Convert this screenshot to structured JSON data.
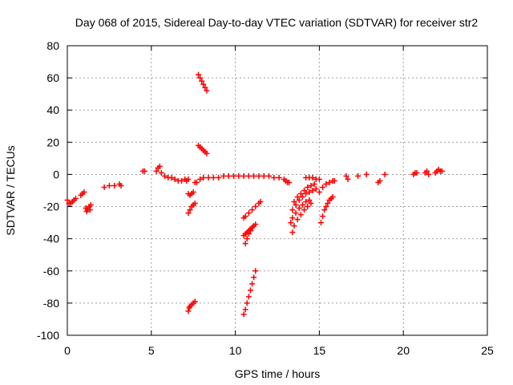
{
  "chart_data": {
    "type": "scatter",
    "title": "Day 068 of 2015, Sidereal Day-to-day VTEC variation (SDTVAR) for receiver str2",
    "xlabel": "GPS time / hours",
    "ylabel": "SDTVAR / TECUs",
    "xlim": [
      0,
      25
    ],
    "ylim": [
      -100,
      80
    ],
    "xticks": [
      "0",
      "5",
      "10",
      "15",
      "20",
      "25"
    ],
    "yticks": [
      "-100",
      "-80",
      "-60",
      "-40",
      "-20",
      "0",
      "20",
      "40",
      "60",
      "80"
    ],
    "xtick_values": [
      0,
      5,
      10,
      15,
      20,
      25
    ],
    "ytick_values": [
      -100,
      -80,
      -60,
      -40,
      -20,
      0,
      20,
      40,
      60,
      80
    ],
    "grid": true,
    "marker": "+",
    "color": "#ff0000",
    "series": [
      {
        "points": [
          [
            0.0,
            -16
          ],
          [
            0.1,
            -18
          ],
          [
            0.2,
            -18
          ],
          [
            0.3,
            -17
          ],
          [
            0.4,
            -16
          ],
          [
            0.5,
            -15
          ],
          [
            0.8,
            -13
          ],
          [
            0.9,
            -12
          ],
          [
            1.0,
            -11
          ],
          [
            1.1,
            -21
          ],
          [
            1.15,
            -23
          ],
          [
            1.2,
            -22
          ],
          [
            1.3,
            -20
          ],
          [
            1.35,
            -22
          ],
          [
            1.4,
            -19
          ],
          [
            2.2,
            -8
          ],
          [
            2.5,
            -7
          ],
          [
            2.8,
            -7
          ],
          [
            3.1,
            -6
          ],
          [
            3.2,
            -7
          ],
          [
            4.5,
            2
          ],
          [
            4.6,
            2
          ],
          [
            5.3,
            2
          ],
          [
            5.4,
            4
          ],
          [
            5.5,
            5
          ],
          [
            5.6,
            1
          ],
          [
            5.8,
            -1
          ],
          [
            6.0,
            -2
          ],
          [
            6.2,
            -2
          ],
          [
            6.4,
            -3
          ],
          [
            6.6,
            -4
          ],
          [
            6.8,
            -4
          ],
          [
            7.0,
            -3
          ],
          [
            7.1,
            -4
          ],
          [
            7.2,
            -3
          ],
          [
            7.2,
            -12
          ],
          [
            7.3,
            -13
          ],
          [
            7.4,
            -12
          ],
          [
            7.5,
            -11
          ],
          [
            7.2,
            -24
          ],
          [
            7.3,
            -22
          ],
          [
            7.4,
            -20
          ],
          [
            7.5,
            -19
          ],
          [
            7.6,
            -18
          ],
          [
            7.2,
            -85
          ],
          [
            7.25,
            -83
          ],
          [
            7.3,
            -82
          ],
          [
            7.4,
            -81
          ],
          [
            7.5,
            -80
          ],
          [
            7.6,
            -79
          ],
          [
            7.6,
            -5
          ],
          [
            7.7,
            -5
          ],
          [
            7.8,
            62
          ],
          [
            7.9,
            60
          ],
          [
            8.0,
            58
          ],
          [
            8.1,
            56
          ],
          [
            8.2,
            54
          ],
          [
            8.3,
            52
          ],
          [
            7.8,
            18
          ],
          [
            7.9,
            17
          ],
          [
            8.0,
            16
          ],
          [
            8.1,
            15
          ],
          [
            8.2,
            14
          ],
          [
            8.3,
            13
          ],
          [
            7.9,
            -3
          ],
          [
            8.1,
            -2
          ],
          [
            8.4,
            -2
          ],
          [
            8.7,
            -2
          ],
          [
            9.0,
            -2
          ],
          [
            9.3,
            -1
          ],
          [
            9.6,
            -1
          ],
          [
            9.9,
            -1
          ],
          [
            10.2,
            -1
          ],
          [
            10.5,
            -1
          ],
          [
            10.8,
            -1
          ],
          [
            11.1,
            -1
          ],
          [
            11.4,
            -1
          ],
          [
            11.7,
            -1
          ],
          [
            12.0,
            -1
          ],
          [
            12.3,
            -2
          ],
          [
            12.6,
            -2
          ],
          [
            12.9,
            -3
          ],
          [
            13.0,
            -4
          ],
          [
            13.1,
            -5
          ],
          [
            13.2,
            -5
          ],
          [
            10.5,
            -87
          ],
          [
            10.6,
            -84
          ],
          [
            10.7,
            -80
          ],
          [
            10.8,
            -76
          ],
          [
            10.9,
            -72
          ],
          [
            11.0,
            -68
          ],
          [
            11.1,
            -64
          ],
          [
            11.2,
            -60
          ],
          [
            10.5,
            -38
          ],
          [
            10.6,
            -37
          ],
          [
            10.7,
            -36
          ],
          [
            10.8,
            -35
          ],
          [
            10.9,
            -34
          ],
          [
            11.0,
            -33
          ],
          [
            11.1,
            -32
          ],
          [
            11.2,
            -31
          ],
          [
            10.6,
            -43
          ],
          [
            10.7,
            -40
          ],
          [
            10.8,
            -37
          ],
          [
            10.9,
            -35
          ],
          [
            11.0,
            -33
          ],
          [
            10.5,
            -27
          ],
          [
            10.6,
            -26
          ],
          [
            10.8,
            -24
          ],
          [
            11.0,
            -22
          ],
          [
            11.2,
            -20
          ],
          [
            11.4,
            -18
          ],
          [
            11.5,
            -17
          ],
          [
            13.4,
            -36
          ],
          [
            13.5,
            -32
          ],
          [
            13.7,
            -28
          ],
          [
            13.9,
            -25
          ],
          [
            14.1,
            -22
          ],
          [
            14.3,
            -20
          ],
          [
            14.5,
            -18
          ],
          [
            13.3,
            -30
          ],
          [
            13.4,
            -27
          ],
          [
            13.6,
            -24
          ],
          [
            13.8,
            -21
          ],
          [
            14.0,
            -19
          ],
          [
            14.2,
            -17
          ],
          [
            14.4,
            -16
          ],
          [
            13.4,
            -22
          ],
          [
            13.6,
            -19
          ],
          [
            13.8,
            -16
          ],
          [
            14.0,
            -14
          ],
          [
            14.2,
            -12
          ],
          [
            14.4,
            -11
          ],
          [
            14.6,
            -10
          ],
          [
            14.8,
            -9
          ],
          [
            13.5,
            -17
          ],
          [
            13.7,
            -14
          ],
          [
            13.9,
            -12
          ],
          [
            14.1,
            -10
          ],
          [
            14.3,
            -8
          ],
          [
            14.5,
            -7
          ],
          [
            14.7,
            -6
          ],
          [
            14.2,
            -2
          ],
          [
            14.4,
            -2
          ],
          [
            14.6,
            -2
          ],
          [
            14.8,
            -3
          ],
          [
            15.0,
            -3
          ],
          [
            15.0,
            -11
          ],
          [
            15.2,
            -8
          ],
          [
            15.4,
            -6
          ],
          [
            15.6,
            -5
          ],
          [
            15.8,
            -4
          ],
          [
            15.9,
            -4
          ],
          [
            15.1,
            -30
          ],
          [
            15.2,
            -26
          ],
          [
            15.3,
            -22
          ],
          [
            15.4,
            -20
          ],
          [
            15.5,
            -18
          ],
          [
            15.6,
            -16
          ],
          [
            15.7,
            -15
          ],
          [
            15.8,
            -14
          ],
          [
            16.6,
            -1
          ],
          [
            16.7,
            -3
          ],
          [
            17.3,
            -1
          ],
          [
            17.8,
            0
          ],
          [
            18.5,
            -5
          ],
          [
            18.6,
            -4
          ],
          [
            18.9,
            0
          ],
          [
            20.6,
            0
          ],
          [
            20.7,
            1
          ],
          [
            20.8,
            1
          ],
          [
            21.3,
            1
          ],
          [
            21.4,
            2
          ],
          [
            21.5,
            0
          ],
          [
            21.9,
            1
          ],
          [
            22.0,
            2
          ],
          [
            22.1,
            3
          ],
          [
            22.2,
            2
          ],
          [
            22.3,
            2
          ]
        ]
      }
    ]
  }
}
